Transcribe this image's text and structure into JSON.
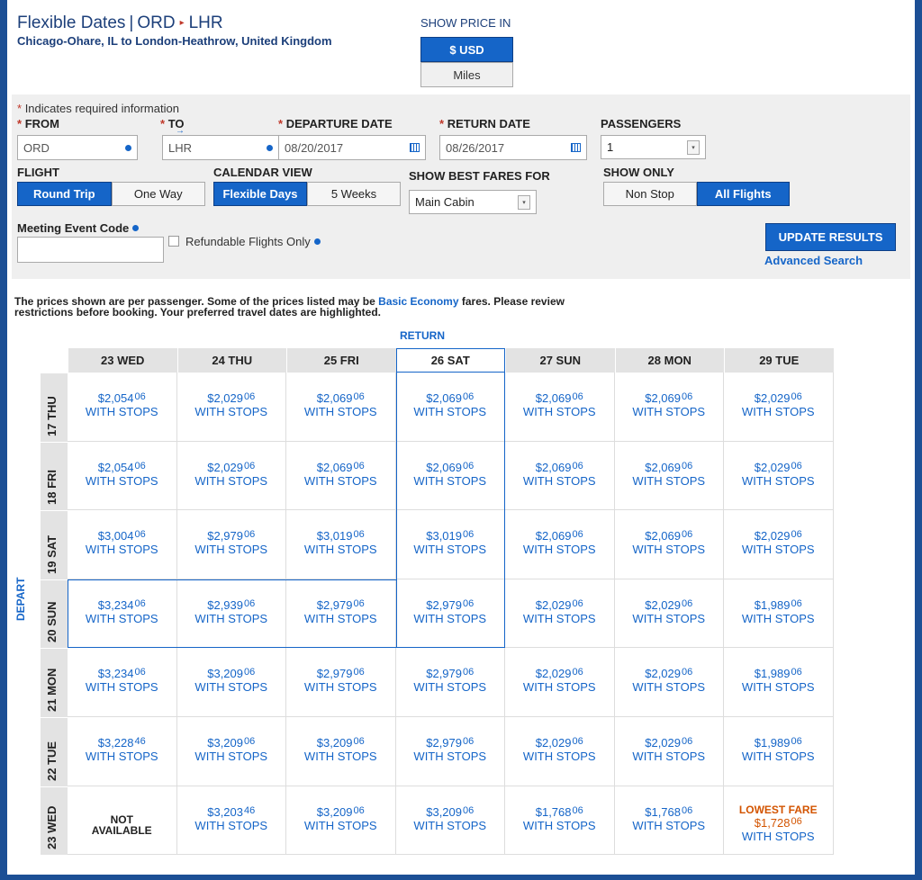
{
  "header": {
    "title_prefix": "Flexible Dates",
    "title_sep": "|",
    "origin_code": "ORD",
    "destination_code": "LHR",
    "route_description": "Chicago-Ohare, IL to London-Heathrow, United Kingdom"
  },
  "price_toggle": {
    "label": "SHOW PRICE IN",
    "usd_label": "$ USD",
    "miles_label": "Miles"
  },
  "form": {
    "required_note": "Indicates required information",
    "from_label": "FROM",
    "from_value": "ORD",
    "to_label": "TO",
    "to_value": "LHR",
    "departure_label": "DEPARTURE DATE",
    "departure_value": "08/20/2017",
    "return_label": "RETURN DATE",
    "return_value": "08/26/2017",
    "passengers_label": "PASSENGERS",
    "passengers_value": "1",
    "flight_label": "FLIGHT",
    "round_trip": "Round Trip",
    "one_way": "One Way",
    "calendar_label": "CALENDAR VIEW",
    "flexible_days": "Flexible Days",
    "five_weeks": "5 Weeks",
    "best_fares_label": "SHOW BEST FARES FOR",
    "cabin_value": "Main Cabin",
    "show_only_label": "SHOW ONLY",
    "non_stop": "Non Stop",
    "all_flights": "All Flights",
    "meeting_code_label": "Meeting Event Code",
    "meeting_code_value": "",
    "refundable_label": "Refundable Flights Only",
    "update_button": "UPDATE RESULTS",
    "advanced_search": "Advanced Search"
  },
  "notice": {
    "text_before": "The prices shown are per passenger. Some of the prices listed may be ",
    "link": "Basic Economy",
    "text_after": " fares. Please review restrictions before booking. Your preferred travel dates are highlighted."
  },
  "calendar": {
    "return_label": "RETURN",
    "depart_label": "DEPART",
    "columns": [
      "23 WED",
      "24 THU",
      "25 FRI",
      "26 SAT",
      "27 SUN",
      "28 MON",
      "29 TUE"
    ],
    "rows": [
      "17 THU",
      "18 FRI",
      "19 SAT",
      "20 SUN",
      "21 MON",
      "22 TUE",
      "23 WED"
    ],
    "selected_col": 3,
    "selected_row": 3,
    "stops_label": "WITH STOPS",
    "not_available": "NOT AVAILABLE",
    "lowest_fare_label": "LOWEST FARE",
    "cells": [
      [
        {
          "d": "$2,054",
          "c": "06"
        },
        {
          "d": "$2,029",
          "c": "06"
        },
        {
          "d": "$2,069",
          "c": "06"
        },
        {
          "d": "$2,069",
          "c": "06"
        },
        {
          "d": "$2,069",
          "c": "06"
        },
        {
          "d": "$2,069",
          "c": "06"
        },
        {
          "d": "$2,029",
          "c": "06"
        }
      ],
      [
        {
          "d": "$2,054",
          "c": "06"
        },
        {
          "d": "$2,029",
          "c": "06"
        },
        {
          "d": "$2,069",
          "c": "06"
        },
        {
          "d": "$2,069",
          "c": "06"
        },
        {
          "d": "$2,069",
          "c": "06"
        },
        {
          "d": "$2,069",
          "c": "06"
        },
        {
          "d": "$2,029",
          "c": "06"
        }
      ],
      [
        {
          "d": "$3,004",
          "c": "06"
        },
        {
          "d": "$2,979",
          "c": "06"
        },
        {
          "d": "$3,019",
          "c": "06"
        },
        {
          "d": "$3,019",
          "c": "06"
        },
        {
          "d": "$2,069",
          "c": "06"
        },
        {
          "d": "$2,069",
          "c": "06"
        },
        {
          "d": "$2,029",
          "c": "06"
        }
      ],
      [
        {
          "d": "$3,234",
          "c": "06"
        },
        {
          "d": "$2,939",
          "c": "06"
        },
        {
          "d": "$2,979",
          "c": "06"
        },
        {
          "d": "$2,979",
          "c": "06"
        },
        {
          "d": "$2,029",
          "c": "06"
        },
        {
          "d": "$2,029",
          "c": "06"
        },
        {
          "d": "$1,989",
          "c": "06"
        }
      ],
      [
        {
          "d": "$3,234",
          "c": "06"
        },
        {
          "d": "$3,209",
          "c": "06"
        },
        {
          "d": "$2,979",
          "c": "06"
        },
        {
          "d": "$2,979",
          "c": "06"
        },
        {
          "d": "$2,029",
          "c": "06"
        },
        {
          "d": "$2,029",
          "c": "06"
        },
        {
          "d": "$1,989",
          "c": "06"
        }
      ],
      [
        {
          "d": "$3,228",
          "c": "46"
        },
        {
          "d": "$3,209",
          "c": "06"
        },
        {
          "d": "$3,209",
          "c": "06"
        },
        {
          "d": "$2,979",
          "c": "06"
        },
        {
          "d": "$2,029",
          "c": "06"
        },
        {
          "d": "$2,029",
          "c": "06"
        },
        {
          "d": "$1,989",
          "c": "06"
        }
      ],
      [
        {
          "na": true
        },
        {
          "d": "$3,203",
          "c": "46"
        },
        {
          "d": "$3,209",
          "c": "06"
        },
        {
          "d": "$3,209",
          "c": "06"
        },
        {
          "d": "$1,768",
          "c": "06"
        },
        {
          "d": "$1,768",
          "c": "06"
        },
        {
          "d": "$1,728",
          "c": "06",
          "lowest": true
        }
      ]
    ]
  },
  "colors": {
    "brand_blue": "#1565c8",
    "dark_blue": "#1c3f7a",
    "lowest_orange": "#d35400",
    "required_red": "#c0392b"
  }
}
